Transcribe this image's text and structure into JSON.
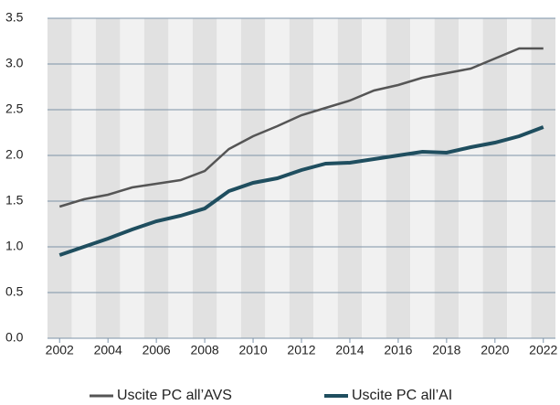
{
  "chart_data": {
    "type": "line",
    "x": [
      2002,
      2003,
      2004,
      2005,
      2006,
      2007,
      2008,
      2009,
      2010,
      2011,
      2012,
      2013,
      2014,
      2015,
      2016,
      2017,
      2018,
      2019,
      2020,
      2021,
      2022
    ],
    "series": [
      {
        "name": "Uscite PC all’AVS",
        "color": "#555555",
        "values": [
          1.44,
          1.52,
          1.57,
          1.65,
          1.69,
          1.73,
          1.83,
          2.07,
          2.21,
          2.32,
          2.44,
          2.52,
          2.6,
          2.71,
          2.77,
          2.85,
          2.9,
          2.95,
          3.06,
          3.17,
          3.17
        ]
      },
      {
        "name": "Uscite PC all’AI",
        "color": "#1f4e5f",
        "values": [
          0.91,
          1.0,
          1.09,
          1.19,
          1.28,
          1.34,
          1.42,
          1.61,
          1.7,
          1.75,
          1.84,
          1.91,
          1.92,
          1.96,
          2.0,
          2.04,
          2.03,
          2.09,
          2.14,
          2.21,
          2.31
        ]
      }
    ],
    "xlim": [
      2001.5,
      2022.5
    ],
    "xticks": [
      2002,
      2004,
      2006,
      2008,
      2010,
      2012,
      2014,
      2016,
      2018,
      2020,
      2022
    ],
    "ylim": [
      0,
      3.5
    ],
    "yticks": [
      {
        "value": 0,
        "label": "0.0"
      },
      0.5,
      {
        "value": 1,
        "label": "1.0"
      },
      1.5,
      {
        "value": 2,
        "label": "2.0"
      },
      2.5,
      {
        "value": 3,
        "label": "3.0"
      },
      3.5
    ],
    "grid": true
  }
}
